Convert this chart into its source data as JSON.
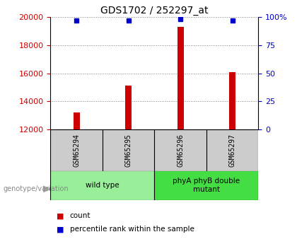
{
  "title": "GDS1702 / 252297_at",
  "samples": [
    "GSM65294",
    "GSM65295",
    "GSM65296",
    "GSM65297"
  ],
  "counts": [
    13200,
    15100,
    19300,
    16100
  ],
  "percentile_ranks": [
    97,
    97,
    98,
    97
  ],
  "ylim_left": [
    12000,
    20000
  ],
  "ylim_right": [
    0,
    100
  ],
  "yticks_left": [
    12000,
    14000,
    16000,
    18000,
    20000
  ],
  "yticks_right": [
    0,
    25,
    50,
    75,
    100
  ],
  "groups": [
    {
      "label": "wild type",
      "indices": [
        0,
        1
      ],
      "color": "#99ee99"
    },
    {
      "label": "phyA phyB double\nmutant",
      "indices": [
        2,
        3
      ],
      "color": "#44dd44"
    }
  ],
  "bar_color": "#cc0000",
  "dot_color": "#0000cc",
  "bar_width": 0.12,
  "title_fontsize": 10,
  "tick_fontsize": 8,
  "sample_box_color": "#cccccc",
  "legend_count_color": "#cc0000",
  "legend_dot_color": "#0000cc",
  "genotype_label": "genotype/variation",
  "legend_count_label": "count",
  "legend_percentile_label": "percentile rank within the sample"
}
